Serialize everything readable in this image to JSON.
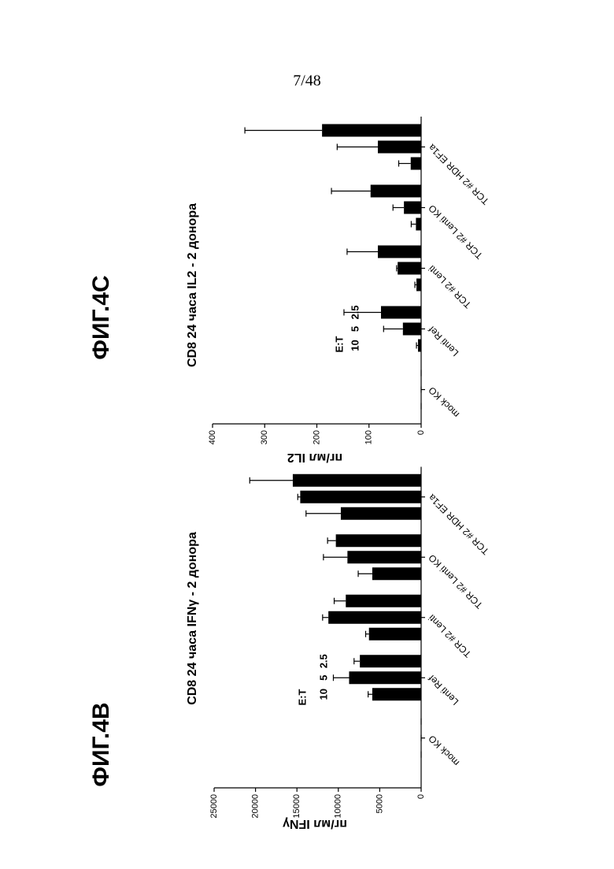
{
  "page_number": "7/48",
  "chart_data": [
    {
      "type": "bar",
      "figure_label": "ФИГ.4В",
      "title": "CD8 24 часа IFNγ - 2 донора",
      "y_label": "пг/мл IFNγ",
      "annotation": "E:T",
      "categories": [
        "mock KO",
        "Lenti Ref",
        "TCR #2 Lenti",
        "TCR #2 Lenti KO",
        "TCR #2 HDR EF1a"
      ],
      "series": [
        {
          "name": "10",
          "color": "#000000",
          "values": [
            0,
            5900,
            6300,
            5900,
            9700
          ],
          "errors": [
            0,
            500,
            400,
            1700,
            4200
          ]
        },
        {
          "name": "5",
          "color": "#000000",
          "values": [
            0,
            8700,
            11200,
            8900,
            14600
          ],
          "errors": [
            0,
            1900,
            700,
            2900,
            300
          ]
        },
        {
          "name": "2.5",
          "color": "#000000",
          "values": [
            0,
            7400,
            9100,
            10300,
            15500
          ],
          "errors": [
            0,
            700,
            1400,
            1000,
            5200
          ]
        }
      ],
      "ylim": [
        0,
        25000
      ],
      "yticks": [
        0,
        5000,
        10000,
        15000,
        20000,
        25000
      ]
    },
    {
      "type": "bar",
      "figure_label": "ФИГ.4С",
      "title": "CD8 24 часа IL2 - 2 донора",
      "y_label": "пг/мл IL2",
      "annotation": "E:T",
      "categories": [
        "mock KO",
        "Lenti Ref",
        "TCR #2 Lenti",
        "TCR #2 Lenti KO",
        "TCR #2 HDR EF1a"
      ],
      "series": [
        {
          "name": "10",
          "color": "#000000",
          "values": [
            0,
            6,
            9,
            10,
            20
          ],
          "errors": [
            0,
            3,
            3,
            9,
            23
          ]
        },
        {
          "name": "5",
          "color": "#000000",
          "values": [
            0,
            35,
            45,
            33,
            83
          ],
          "errors": [
            0,
            37,
            2,
            21,
            78
          ]
        },
        {
          "name": "2.5",
          "color": "#000000",
          "values": [
            0,
            77,
            83,
            97,
            190
          ],
          "errors": [
            0,
            71,
            59,
            75,
            148
          ]
        }
      ],
      "ylim": [
        0,
        400
      ],
      "yticks": [
        0,
        100,
        200,
        300,
        400
      ]
    }
  ]
}
